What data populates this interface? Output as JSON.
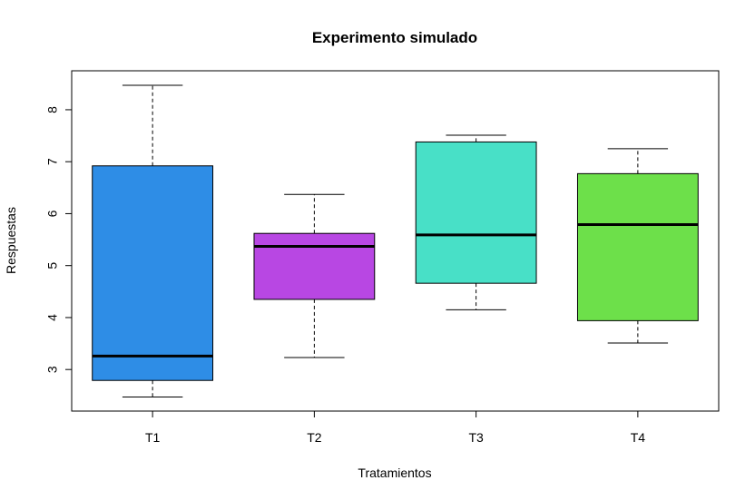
{
  "chart_data": {
    "type": "boxplot",
    "title": "Experimento simulado",
    "xlabel": "Tratamientos",
    "ylabel": "Respuestas",
    "ylim": [
      2.2,
      8.75
    ],
    "yticks": [
      "3",
      "4",
      "5",
      "6",
      "7",
      "8"
    ],
    "groups": [
      {
        "category": "T1",
        "min": 2.47,
        "q1": 2.79,
        "median": 3.26,
        "q3": 6.92,
        "max": 8.47,
        "color": "#2E8DE6"
      },
      {
        "category": "T2",
        "min": 3.23,
        "q1": 4.35,
        "median": 5.37,
        "q3": 5.62,
        "max": 6.37,
        "color": "#B847E3"
      },
      {
        "category": "T3",
        "min": 4.15,
        "q1": 4.66,
        "median": 5.59,
        "q3": 7.38,
        "max": 7.51,
        "color": "#48E0C7"
      },
      {
        "category": "T4",
        "min": 3.51,
        "q1": 3.94,
        "median": 5.79,
        "q3": 6.77,
        "max": 7.25,
        "color": "#6DE04A"
      }
    ]
  }
}
